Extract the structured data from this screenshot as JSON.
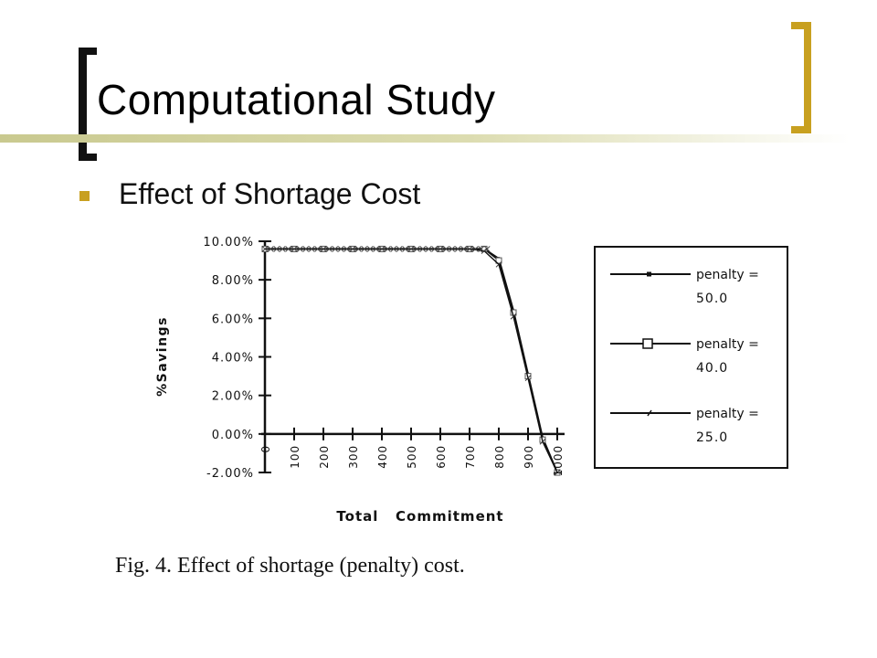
{
  "slide": {
    "title": "Computational Study",
    "bullet": "Effect of Shortage Cost",
    "caption": "Fig. 4.  Effect of shortage (penalty) cost.",
    "accent_color": "#c8a020",
    "bracket_color": "#111111"
  },
  "chart_data": {
    "type": "line",
    "xlabel": "Total   Commitment",
    "ylabel": "%Savings",
    "x_ticks": [
      "0",
      "100",
      "200",
      "300",
      "400",
      "500",
      "600",
      "700",
      "800",
      "900",
      "1000"
    ],
    "y_ticks": [
      "10.00%",
      "8.00%",
      "6.00%",
      "4.00%",
      "2.00%",
      "0.00%",
      "-2.00%"
    ],
    "xlim": [
      0,
      1000
    ],
    "ylim": [
      -2,
      10
    ],
    "grid": false,
    "legend_position": "right",
    "series": [
      {
        "name": "penalty = 50.0",
        "marker": "dot",
        "x": [
          0,
          100,
          200,
          300,
          400,
          500,
          600,
          700,
          750,
          800,
          850,
          900,
          950,
          1000
        ],
        "y": [
          9.6,
          9.6,
          9.6,
          9.6,
          9.6,
          9.6,
          9.6,
          9.6,
          9.6,
          9.1,
          6.4,
          3.1,
          -0.2,
          -2.0
        ]
      },
      {
        "name": "penalty = 40.0",
        "marker": "square",
        "x": [
          0,
          100,
          200,
          300,
          400,
          500,
          600,
          700,
          750,
          800,
          850,
          900,
          950,
          1000
        ],
        "y": [
          9.6,
          9.6,
          9.6,
          9.6,
          9.6,
          9.6,
          9.6,
          9.6,
          9.6,
          9.0,
          6.3,
          3.0,
          -0.3,
          -2.0
        ]
      },
      {
        "name": "penalty = 25.0",
        "marker": "tick",
        "x": [
          0,
          100,
          200,
          300,
          400,
          500,
          600,
          700,
          750,
          800,
          850,
          900,
          950,
          1000
        ],
        "y": [
          9.6,
          9.6,
          9.6,
          9.6,
          9.6,
          9.6,
          9.6,
          9.6,
          9.5,
          8.8,
          6.1,
          2.9,
          -0.4,
          -2.0
        ]
      }
    ],
    "legend": [
      {
        "line1": "penalty  =",
        "line2": "50.0"
      },
      {
        "line1": "penalty  =",
        "line2": "40.0"
      },
      {
        "line1": "penalty  =",
        "line2": "25.0"
      }
    ]
  }
}
